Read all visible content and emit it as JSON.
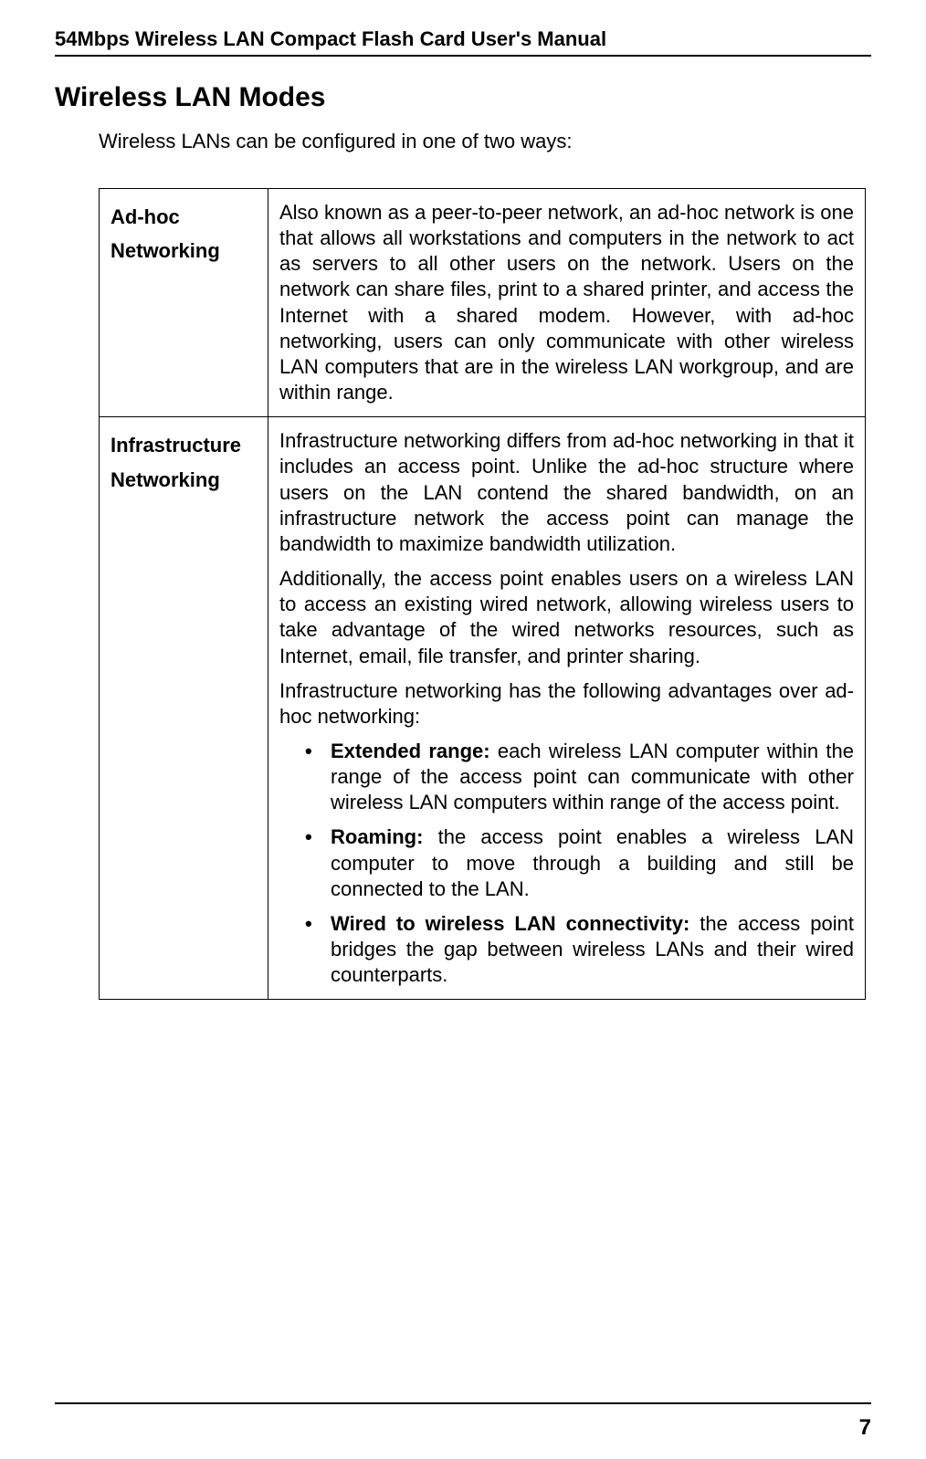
{
  "header": {
    "title": "54Mbps Wireless LAN Compact Flash Card User's Manual"
  },
  "section": {
    "title": "Wireless LAN Modes",
    "intro": "Wireless LANs can be configured in one of two ways:"
  },
  "modes": {
    "adhoc": {
      "label_line1": "Ad-hoc",
      "label_line2": "Networking",
      "description": "Also known as a peer-to-peer network, an ad-hoc network is one that allows all workstations and computers in the network to act as servers to all other users on the network. Users on the network can share files, print to a shared printer, and access the Internet with a shared modem. However, with ad-hoc networking, users can only communicate with other wireless LAN computers that are in the wireless LAN workgroup, and are within range."
    },
    "infrastructure": {
      "label_line1": "Infrastructure",
      "label_line2": "Networking",
      "para1": "Infrastructure networking differs from ad-hoc networking in that it includes an access point. Unlike the ad-hoc structure where users on the LAN contend the shared bandwidth, on an infrastructure network the access point can manage the bandwidth to maximize bandwidth utilization.",
      "para2": "Additionally, the access point enables users on a wireless LAN to access an existing wired network, allowing wireless users to take advantage of the wired networks resources, such as Internet, email, file transfer, and printer sharing.",
      "para3": "Infrastructure networking has the following advantages over ad-hoc networking:",
      "bullets": {
        "b1_bold": "Extended range:",
        "b1_rest": " each wireless LAN computer within the range of the access point can communicate with other wireless LAN computers within range of the access point.",
        "b2_bold": "Roaming:",
        "b2_rest": " the access point enables a wireless LAN computer to move through a building and still be connected to the LAN.",
        "b3_bold": "Wired to wireless LAN connectivity:",
        "b3_rest": " the access point bridges the gap between wireless LANs and their wired counterparts."
      }
    }
  },
  "footer": {
    "page": "7"
  }
}
